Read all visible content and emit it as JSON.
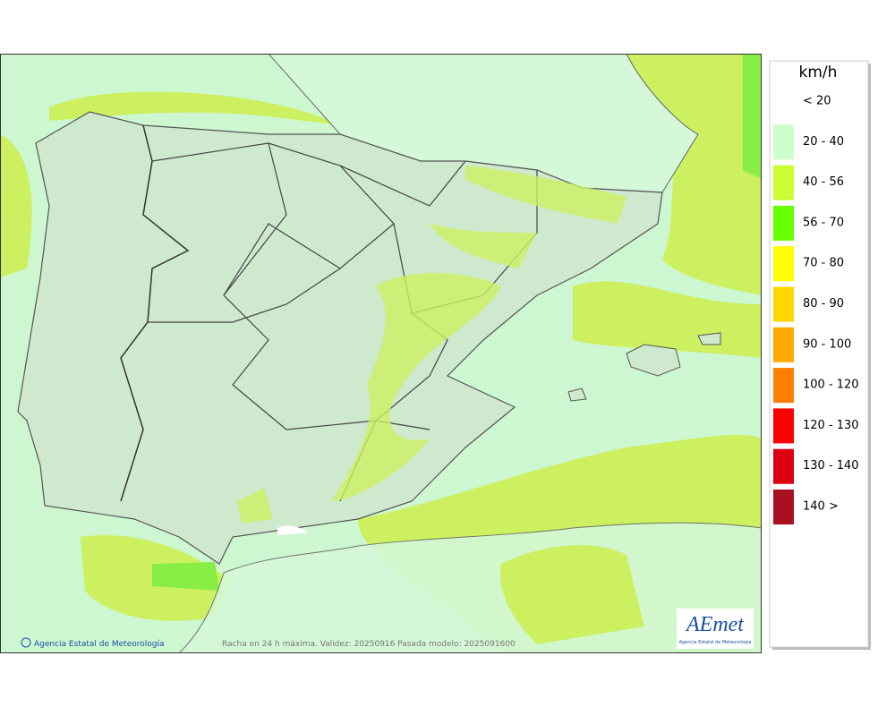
{
  "map": {
    "credit": "Agencia Estatal de Meteorología",
    "caption": "Racha en 24 h máxima. Validez: 20250916 Pasada modelo: 2025091600",
    "logo": {
      "brand": "AEmet",
      "subtitle": "Agencia Estatal de Meteorología"
    }
  },
  "legend": {
    "unit": "km/h",
    "items": [
      {
        "label": "< 20"
      },
      {
        "label": "20 - 40",
        "color": "#ccffcc"
      },
      {
        "label": "40 - 56",
        "color": "#ccff33"
      },
      {
        "label": "56 - 70",
        "color": "#66ff00"
      },
      {
        "label": "70 - 80",
        "color": "#ffff00"
      },
      {
        "label": "80 - 90",
        "color": "#ffd700"
      },
      {
        "label": "90 - 100",
        "color": "#ffaa00"
      },
      {
        "label": "100 - 120",
        "color": "#ff8000"
      },
      {
        "label": "120 - 130",
        "color": "#ff0000"
      },
      {
        "label": "130 - 140",
        "color": "#dd0011"
      },
      {
        "label": "140 >",
        "color": "#aa1020"
      }
    ]
  }
}
